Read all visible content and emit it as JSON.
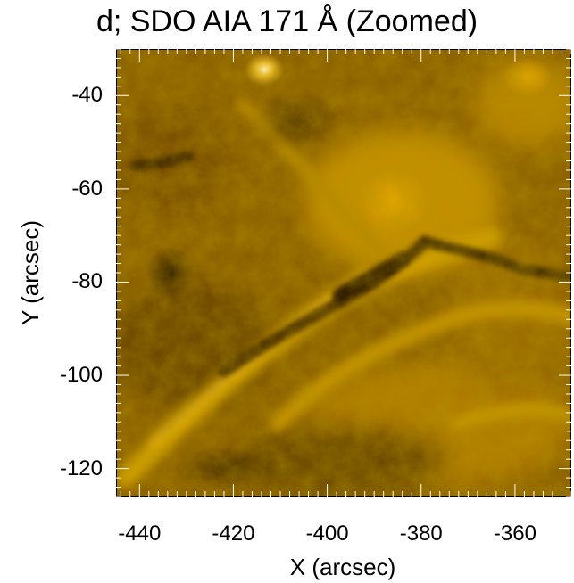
{
  "title": "d; SDO AIA 171 Å (Zoomed)",
  "image": {
    "instrument": "SDO AIA 171 Å",
    "colormap": [
      "#3a2400",
      "#7a5200",
      "#a87400",
      "#d09a00",
      "#f2bd1a",
      "#fff0b0"
    ]
  },
  "axes": {
    "xlabel": "X (arcsec)",
    "ylabel": "Y (arcsec)",
    "xlim": [
      -445,
      -348
    ],
    "ylim": [
      -126,
      -30
    ],
    "x_ticks": [
      {
        "value": -440,
        "label": "-440"
      },
      {
        "value": -420,
        "label": "-420"
      },
      {
        "value": -400,
        "label": "-400"
      },
      {
        "value": -380,
        "label": "-380"
      },
      {
        "value": -360,
        "label": "-360"
      }
    ],
    "y_ticks": [
      {
        "value": -40,
        "label": "-40"
      },
      {
        "value": -60,
        "label": "-60"
      },
      {
        "value": -80,
        "label": "-80"
      },
      {
        "value": -100,
        "label": "-100"
      },
      {
        "value": -120,
        "label": "-120"
      }
    ]
  }
}
